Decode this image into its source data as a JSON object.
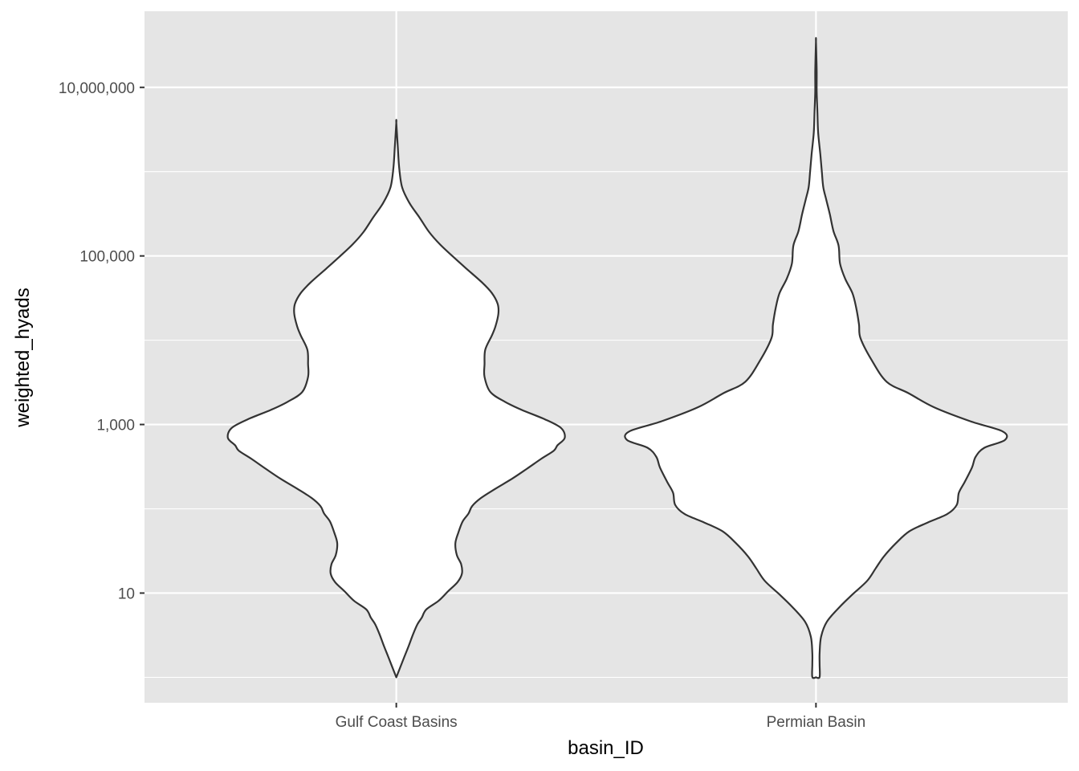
{
  "chart_data": {
    "type": "violin",
    "xlabel": "basin_ID",
    "ylabel": "weighted_hyads",
    "y_scale": "log10",
    "ylim": [
      0.5,
      80000000
    ],
    "grid": true,
    "y_ticks": [
      {
        "value": 10,
        "label": "10"
      },
      {
        "value": 1000,
        "label": "1,000"
      },
      {
        "value": 100000,
        "label": "100,000"
      },
      {
        "value": 10000000,
        "label": "10,000,000"
      }
    ],
    "y_minor_ticks": [
      1,
      100,
      10000,
      1000000
    ],
    "categories": [
      "Gulf Coast Basins",
      "Permian Basin"
    ],
    "series": [
      {
        "category": "Gulf Coast Basins",
        "y_range": [
          1,
          3800000
        ],
        "density_profile": [
          [
            1.0,
            0.0
          ],
          [
            1.75,
            0.11
          ],
          [
            2.36,
            0.17
          ],
          [
            3.25,
            0.23
          ],
          [
            4.27,
            0.29
          ],
          [
            5.12,
            0.35
          ],
          [
            6.38,
            0.41
          ],
          [
            8.1,
            0.58
          ],
          [
            10.5,
            0.71
          ],
          [
            13.5,
            0.84
          ],
          [
            17.0,
            0.9
          ],
          [
            21.9,
            0.89
          ],
          [
            28.3,
            0.83
          ],
          [
            38.9,
            0.81
          ],
          [
            51.9,
            0.85
          ],
          [
            70.8,
            0.91
          ],
          [
            87.8,
            0.99
          ],
          [
            107.6,
            1.04
          ],
          [
            134.0,
            1.16
          ],
          [
            171.0,
            1.35
          ],
          [
            228.0,
            1.59
          ],
          [
            298.0,
            1.79
          ],
          [
            393.0,
            1.99
          ],
          [
            489.0,
            2.16
          ],
          [
            566.0,
            2.21
          ],
          [
            694.0,
            2.31
          ],
          [
            907.0,
            2.26
          ],
          [
            1150.0,
            2.04
          ],
          [
            1490.0,
            1.72
          ],
          [
            1860.0,
            1.49
          ],
          [
            2430.0,
            1.29
          ],
          [
            3670.0,
            1.21
          ],
          [
            5190.0,
            1.21
          ],
          [
            7720.0,
            1.22
          ],
          [
            11350.0,
            1.31
          ],
          [
            14610.0,
            1.36
          ],
          [
            20660.0,
            1.4
          ],
          [
            27000.0,
            1.39
          ],
          [
            36350.0,
            1.31
          ],
          [
            48950.0,
            1.17
          ],
          [
            70780.0,
            0.96
          ],
          [
            97720.0,
            0.78
          ],
          [
            136800.0,
            0.6
          ],
          [
            192300.0,
            0.45
          ],
          [
            284100.0,
            0.32
          ],
          [
            425000.0,
            0.18
          ],
          [
            650000.0,
            0.08
          ],
          [
            1100000.0,
            0.04
          ],
          [
            2000000.0,
            0.02
          ],
          [
            3800000.0,
            0.0
          ]
        ]
      },
      {
        "category": "Permian Basin",
        "y_range": [
          1,
          35000000
        ],
        "density_profile": [
          [
            1.0,
            0.0
          ],
          [
            1.01,
            0.05
          ],
          [
            1.42,
            0.05
          ],
          [
            1.94,
            0.05
          ],
          [
            3.03,
            0.07
          ],
          [
            4.58,
            0.15
          ],
          [
            6.92,
            0.33
          ],
          [
            9.63,
            0.5
          ],
          [
            13.9,
            0.7
          ],
          [
            19.7,
            0.82
          ],
          [
            27.1,
            0.93
          ],
          [
            39.3,
            1.1
          ],
          [
            54.0,
            1.28
          ],
          [
            68.6,
            1.53
          ],
          [
            86.5,
            1.8
          ],
          [
            111.0,
            1.93
          ],
          [
            155.0,
            1.96
          ],
          [
            208.0,
            2.04
          ],
          [
            309.0,
            2.14
          ],
          [
            414.0,
            2.19
          ],
          [
            530.0,
            2.31
          ],
          [
            653.0,
            2.59
          ],
          [
            828.0,
            2.56
          ],
          [
            1090.0,
            2.12
          ],
          [
            1600.0,
            1.62
          ],
          [
            2350.0,
            1.27
          ],
          [
            3210.0,
            0.97
          ],
          [
            5880.0,
            0.76
          ],
          [
            10620.0,
            0.61
          ],
          [
            15440.0,
            0.59
          ],
          [
            24640.0,
            0.55
          ],
          [
            36200.0,
            0.5
          ],
          [
            53800.0,
            0.4
          ],
          [
            81200.0,
            0.33
          ],
          [
            132500.0,
            0.31
          ],
          [
            197000.0,
            0.24
          ],
          [
            313000.0,
            0.19
          ],
          [
            469000.0,
            0.14
          ],
          [
            656000.0,
            0.1
          ],
          [
            1010000.0,
            0.08
          ],
          [
            1600000.0,
            0.06
          ],
          [
            2900000.0,
            0.03
          ],
          [
            5000000.0,
            0.02
          ],
          [
            9000000.0,
            0.01
          ],
          [
            16000000.0,
            0.01
          ],
          [
            35000000.0,
            0.0
          ]
        ]
      }
    ]
  },
  "colors": {
    "panel_background": "#e5e5e5",
    "grid": "#ffffff",
    "violin_fill": "#ffffff",
    "violin_outline": "#333333",
    "tick_text": "#4d4d4d",
    "axis_title": "#000000"
  }
}
